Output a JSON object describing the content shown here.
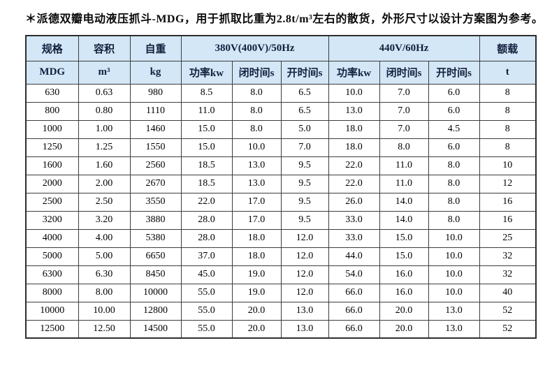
{
  "page": {
    "note": "＊派德双瓣电动液压抓斗-MDG，用于抓取比重为2.8t/m³左右的散货，外形尺寸以设计方案图为参考。"
  },
  "colors": {
    "header_bg": "#d3e7f6",
    "header_text": "#13203e",
    "border": "#3d3d3d",
    "outer_border": "#2e2e2e",
    "body_text": "#000000"
  },
  "table": {
    "header_row1": {
      "spec": "规格",
      "volume": "容积",
      "weight": "自重",
      "group_380": "380V(400V)/50Hz",
      "group_440": "440V/60Hz",
      "load": "额载"
    },
    "header_row2": {
      "spec_unit": "MDG",
      "volume_unit": "m³",
      "weight_unit": "kg",
      "power_50": "功率kw",
      "close_50": "闭时间s",
      "open_50": "开时间s",
      "power_60": "功率kw",
      "close_60": "闭时间s",
      "open_60": "开时间s",
      "load_unit": "t"
    },
    "rows": [
      [
        "630",
        "0.63",
        "980",
        "8.5",
        "8.0",
        "6.5",
        "10.0",
        "7.0",
        "6.0",
        "8"
      ],
      [
        "800",
        "0.80",
        "1110",
        "11.0",
        "8.0",
        "6.5",
        "13.0",
        "7.0",
        "6.0",
        "8"
      ],
      [
        "1000",
        "1.00",
        "1460",
        "15.0",
        "8.0",
        "5.0",
        "18.0",
        "7.0",
        "4.5",
        "8"
      ],
      [
        "1250",
        "1.25",
        "1550",
        "15.0",
        "10.0",
        "7.0",
        "18.0",
        "8.0",
        "6.0",
        "8"
      ],
      [
        "1600",
        "1.60",
        "2560",
        "18.5",
        "13.0",
        "9.5",
        "22.0",
        "11.0",
        "8.0",
        "10"
      ],
      [
        "2000",
        "2.00",
        "2670",
        "18.5",
        "13.0",
        "9.5",
        "22.0",
        "11.0",
        "8.0",
        "12"
      ],
      [
        "2500",
        "2.50",
        "3550",
        "22.0",
        "17.0",
        "9.5",
        "26.0",
        "14.0",
        "8.0",
        "16"
      ],
      [
        "3200",
        "3.20",
        "3880",
        "28.0",
        "17.0",
        "9.5",
        "33.0",
        "14.0",
        "8.0",
        "16"
      ],
      [
        "4000",
        "4.00",
        "5380",
        "28.0",
        "18.0",
        "12.0",
        "33.0",
        "15.0",
        "10.0",
        "25"
      ],
      [
        "5000",
        "5.00",
        "6650",
        "37.0",
        "18.0",
        "12.0",
        "44.0",
        "15.0",
        "10.0",
        "32"
      ],
      [
        "6300",
        "6.30",
        "8450",
        "45.0",
        "19.0",
        "12.0",
        "54.0",
        "16.0",
        "10.0",
        "32"
      ],
      [
        "8000",
        "8.00",
        "10000",
        "55.0",
        "19.0",
        "12.0",
        "66.0",
        "16.0",
        "10.0",
        "40"
      ],
      [
        "10000",
        "10.00",
        "12800",
        "55.0",
        "20.0",
        "13.0",
        "66.0",
        "20.0",
        "13.0",
        "52"
      ],
      [
        "12500",
        "12.50",
        "14500",
        "55.0",
        "20.0",
        "13.0",
        "66.0",
        "20.0",
        "13.0",
        "52"
      ]
    ]
  }
}
